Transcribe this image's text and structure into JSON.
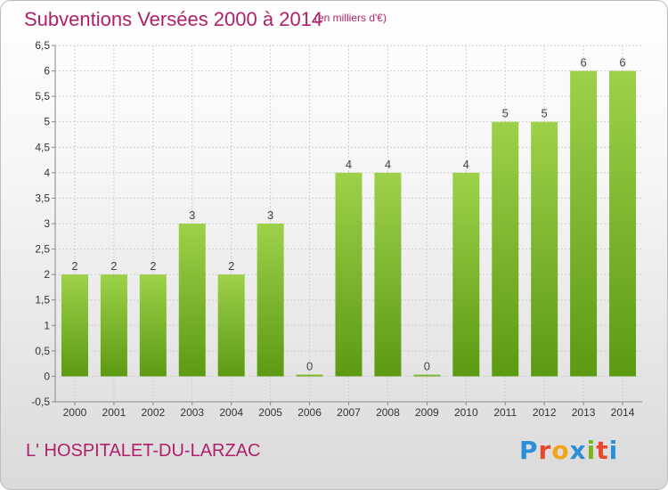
{
  "header": {
    "title": "Subventions Versées 2000 à 2014",
    "subtitle": "(en milliers d'€)"
  },
  "footer": {
    "place": "L' HOSPITALET-DU-LARZAC",
    "logo": "Proxiti",
    "logo_colors": [
      "#2b8fd8",
      "#e8472c",
      "#f2a51a",
      "#2b8fd8",
      "#7ab51d",
      "#e8472c",
      "#2b8fd8"
    ]
  },
  "colors": {
    "title": "#b0206a",
    "bar_top": "#9ed14a",
    "bar_bottom": "#5c9a12",
    "grid": "#cfcfcf",
    "axis_text": "#333333"
  },
  "chart_data": {
    "type": "bar",
    "categories": [
      "2000",
      "2001",
      "2002",
      "2003",
      "2004",
      "2005",
      "2006",
      "2007",
      "2008",
      "2009",
      "2010",
      "2011",
      "2012",
      "2013",
      "2014"
    ],
    "values": [
      2,
      2,
      2,
      3,
      2,
      3,
      0,
      4,
      4,
      0,
      4,
      5,
      5,
      6,
      6
    ],
    "title": "Subventions Versées 2000 à 2014",
    "subtitle": "(en milliers d'€)",
    "ylim": [
      -0.5,
      6.5
    ],
    "yticks": [
      "-0,5",
      "0",
      "0,5",
      "1",
      "1,5",
      "2",
      "2,5",
      "3",
      "3,5",
      "4",
      "4,5",
      "5",
      "5,5",
      "6",
      "6,5"
    ],
    "ytick_values": [
      -0.5,
      0,
      0.5,
      1,
      1.5,
      2,
      2.5,
      3,
      3.5,
      4,
      4.5,
      5,
      5.5,
      6,
      6.5
    ],
    "grid": true,
    "legend": "none"
  }
}
